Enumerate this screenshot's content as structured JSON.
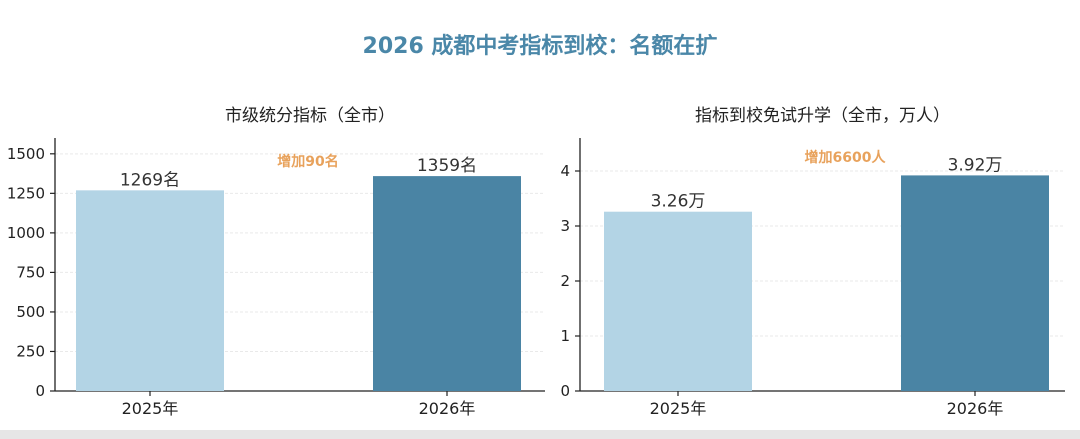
{
  "title": "2026 成都中考指标到校：名额在扩",
  "colors": {
    "bar_2025": "#b3d4e5",
    "bar_2026": "#4a84a4",
    "title": "#4a87a8",
    "annotation": "#e8a25c"
  },
  "chart_data": [
    {
      "type": "bar",
      "title": "市级统分指标（全市）",
      "categories": [
        "2025年",
        "2026年"
      ],
      "values": [
        1269,
        1359
      ],
      "value_labels": [
        "1269名",
        "1359名"
      ],
      "ylim": [
        0,
        1600
      ],
      "yticks": [
        "0",
        "250",
        "500",
        "750",
        "1000",
        "1250",
        "1500"
      ],
      "ytick_values": [
        0,
        250,
        500,
        750,
        1000,
        1250,
        1500
      ],
      "annotation": "增加90名",
      "grid": true
    },
    {
      "type": "bar",
      "title": "指标到校免试升学（全市，万人）",
      "categories": [
        "2025年",
        "2026年"
      ],
      "values": [
        3.26,
        3.92
      ],
      "value_labels": [
        "3.26万",
        "3.92万"
      ],
      "ylim": [
        0,
        4.6
      ],
      "yticks": [
        "0",
        "1",
        "2",
        "3",
        "4"
      ],
      "ytick_values": [
        0,
        1,
        2,
        3,
        4
      ],
      "annotation": "增加6600人",
      "grid": true
    }
  ]
}
